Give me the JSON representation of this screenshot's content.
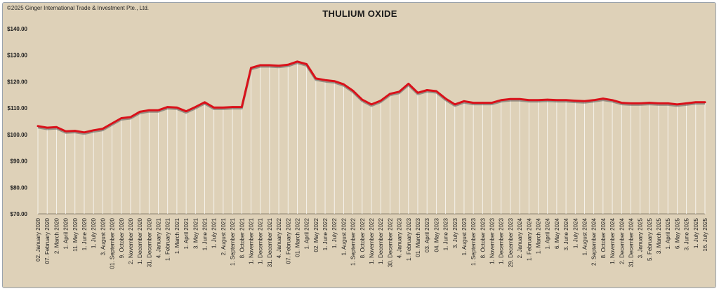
{
  "copyright": "©2025 Ginger International Trade & Investment Pte., Ltd.",
  "colors": {
    "background": "#ded1b8",
    "line": "#d9111a",
    "shadow": "#5a5a5a",
    "drop_lines": "#ffffff"
  },
  "chart_data": {
    "type": "line",
    "title": "THULIUM OXIDE",
    "xlabel": "",
    "ylabel": "",
    "ylim": [
      70,
      140
    ],
    "y_ticks": [
      "$140.00",
      "$130.00",
      "$120.00",
      "$110.00",
      "$100.00",
      "$90.00",
      "$80.00",
      "$70.00"
    ],
    "grid": false,
    "legend": "none",
    "categories": [
      "02. January 2020",
      "07. February 2020",
      "2. March 2020",
      "1. April 2020",
      "11. May 2020",
      "1. June 2020",
      "1. July 2020",
      "3. August 2020",
      "01. September 2020",
      "9. October 2020",
      "2. November 2020",
      "1. December 2020",
      "31. December 2020",
      "4. January 2021",
      "1. February 2021",
      "1. March 2021",
      "1. April 2021",
      "3. May 2021",
      "1. June 2021",
      "1. July 2021",
      "2. August 2021",
      "1. September 2021",
      "8. October 2021",
      "1. November 2021",
      "1. December 2021",
      "31. December 2021",
      "4. January 2022",
      "07. February 2022",
      "01. March 2022",
      "1. April 2022",
      "02. May 2022",
      "1. June 2022",
      "1. July 2022",
      "1. August 2022",
      "1. September 2022",
      "8. October 2022",
      "1. November 2022",
      "1. December 2022",
      "30. December 2022",
      "4. January 2023",
      "1. February 2023",
      "01. March 2023",
      "03. April 2023",
      "04. May 2023",
      "1. June 2023",
      "3. July 2023",
      "1. August 2023",
      "1. September 2023",
      "8. October 2023",
      "1. November 2023",
      "1. December 2023",
      "29. December 2023",
      "2. January 2024",
      "1. February 2024",
      "1. March 2024",
      "1. April 2024",
      "6. May 2024",
      "3. June 2024",
      "1. July 2024",
      "1. August 2024",
      "2. September 2024",
      "8. October 2024",
      "1. November 2024",
      "2. December 2024",
      "31. December 2024",
      "3. January 2025",
      "5. February 2025",
      "3. March 2025",
      "1. April 2025",
      "6. May 2025",
      "3. June 2025",
      "1. July 2025",
      "16. July 2025"
    ],
    "series": [
      {
        "values": [
          103.2,
          102.6,
          102.8,
          101.2,
          101.4,
          100.8,
          101.6,
          102.2,
          104.2,
          106.2,
          106.6,
          108.6,
          109.2,
          109.2,
          110.4,
          110.2,
          108.8,
          110.4,
          112.2,
          110.2,
          110.2,
          110.4,
          110.4,
          125.2,
          126.2,
          126.2,
          126.0,
          126.4,
          127.6,
          126.6,
          121.2,
          120.6,
          120.2,
          119.0,
          116.6,
          113.2,
          111.4,
          112.8,
          115.4,
          116.2,
          119.2,
          115.8,
          116.8,
          116.4,
          113.6,
          111.4,
          112.6,
          112.0,
          112.0,
          112.0,
          113.0,
          113.4,
          113.4,
          113.0,
          113.0,
          113.2,
          113.0,
          113.0,
          112.8,
          112.6,
          113.0,
          113.6,
          113.0,
          112.0,
          111.8,
          111.8,
          112.0,
          111.8,
          111.8,
          111.4,
          111.8,
          112.2,
          112.2
        ]
      }
    ]
  }
}
